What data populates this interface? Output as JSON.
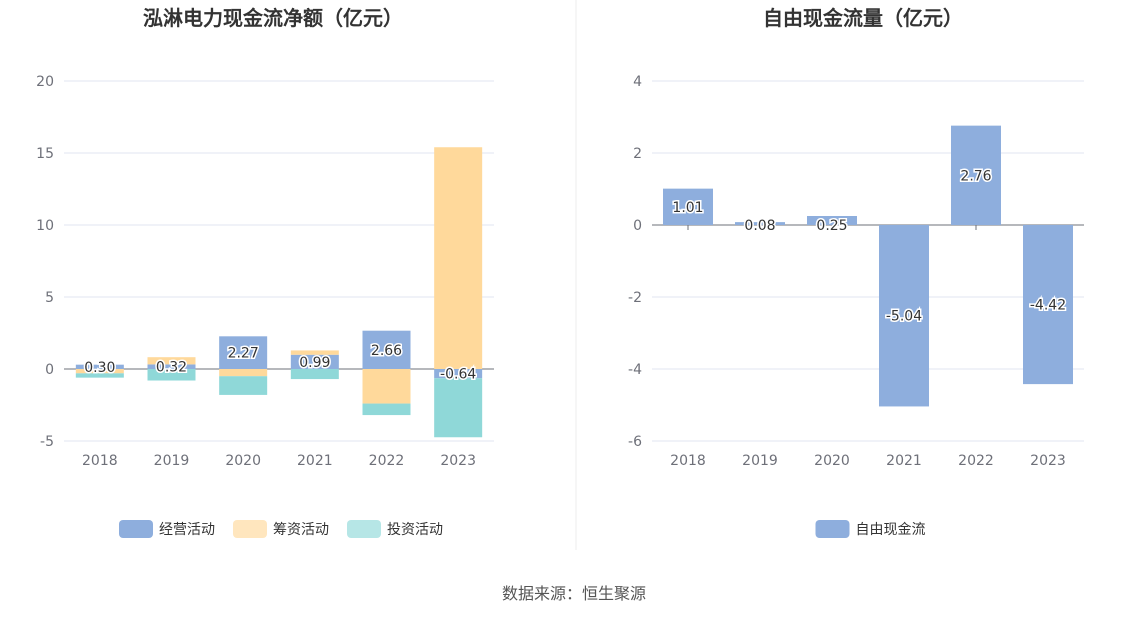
{
  "chart_data": [
    {
      "type": "bar",
      "stacked": true,
      "title": "泓淋电力现金流净额（亿元）",
      "categories": [
        "2018",
        "2019",
        "2020",
        "2021",
        "2022",
        "2023"
      ],
      "ylim": [
        -5,
        20
      ],
      "yticks": [
        -5,
        0,
        5,
        10,
        15,
        20
      ],
      "series": [
        {
          "name": "经营活动",
          "color": "#8eaedd",
          "values": [
            0.3,
            0.32,
            2.27,
            0.99,
            2.66,
            -0.64
          ]
        },
        {
          "name": "筹资活动",
          "color": "#ffd99b",
          "values": [
            -0.3,
            0.5,
            -0.5,
            0.3,
            -2.4,
            15.4
          ]
        },
        {
          "name": "投资活动",
          "color": "#8fd8d8",
          "values": [
            -0.3,
            -0.8,
            -1.3,
            -0.7,
            -0.8,
            -4.1
          ]
        }
      ],
      "labels": [
        "0.30",
        "0.32",
        "2.27",
        "0.99",
        "2.66",
        "-0.64"
      ],
      "legend_position": "bottom"
    },
    {
      "type": "bar",
      "title": "自由现金流量（亿元）",
      "categories": [
        "2018",
        "2019",
        "2020",
        "2021",
        "2022",
        "2023"
      ],
      "ylim": [
        -6,
        4
      ],
      "yticks": [
        -6,
        -4,
        -2,
        0,
        2,
        4
      ],
      "series": [
        {
          "name": "自由现金流",
          "color": "#8eaedd",
          "values": [
            1.01,
            0.08,
            0.25,
            -5.04,
            2.76,
            -4.42
          ]
        }
      ],
      "labels": [
        "1.01",
        "0.08",
        "0.25",
        "-5.04",
        "2.76",
        "-4.42"
      ],
      "legend_position": "bottom"
    }
  ],
  "source": "数据来源：恒生聚源"
}
